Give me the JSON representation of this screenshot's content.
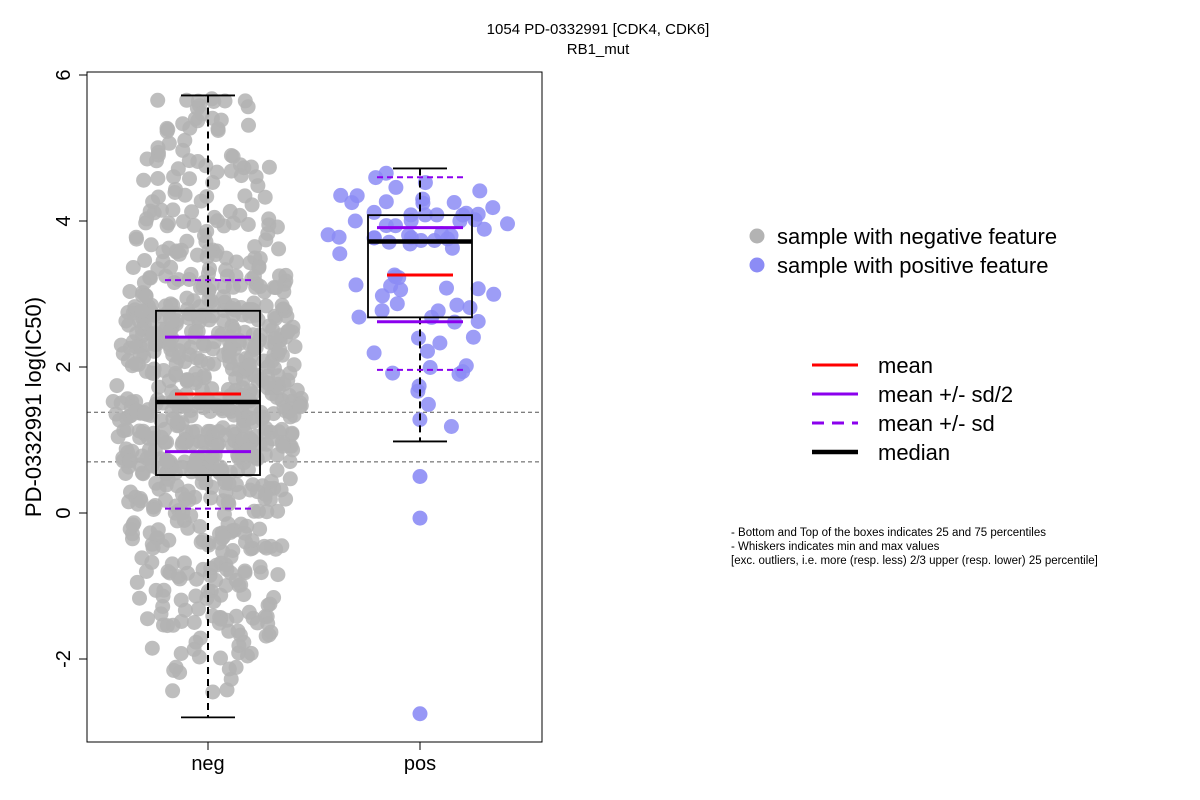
{
  "chart_data": {
    "type": "box",
    "title": "1054 PD-0332991 [CDK4, CDK6]",
    "subtitle": "RB1_mut",
    "ylabel": "PD-0332991 log(IC50)",
    "xlabel": "",
    "ylim": [
      -3.1,
      6.1
    ],
    "yticks": [
      -2,
      0,
      2,
      4,
      6
    ],
    "categories": [
      "neg",
      "pos"
    ],
    "reference_lines": [
      0.7,
      1.38
    ],
    "grid": false,
    "groups": [
      {
        "name": "neg",
        "n_points": 800,
        "whisker_low": -2.8,
        "q1": 0.52,
        "median": 1.52,
        "q3": 2.77,
        "whisker_high": 5.72,
        "mean": 1.63,
        "mean_minus_sd_half": 0.84,
        "mean_plus_sd_half": 2.41,
        "mean_minus_sd": 0.06,
        "mean_plus_sd": 3.19,
        "color": "#b3b3b3"
      },
      {
        "name": "pos",
        "n_points": 80,
        "whisker_low": 0.98,
        "q1": 2.68,
        "median": 3.72,
        "q3": 4.08,
        "whisker_high": 4.72,
        "mean": 3.26,
        "mean_minus_sd_half": 2.62,
        "mean_plus_sd_half": 3.91,
        "mean_minus_sd": 1.96,
        "mean_plus_sd": 4.6,
        "outliers": [
          0.5,
          -0.07,
          -2.75
        ],
        "color": "#8c8cf5"
      }
    ],
    "legend_points": [
      {
        "label": "sample with negative feature",
        "color": "#b3b3b3"
      },
      {
        "label": "sample with positive feature",
        "color": "#8c8cf5"
      }
    ],
    "legend_lines": [
      {
        "label": "mean",
        "color": "#ff0000",
        "style": "solid"
      },
      {
        "label": "mean +/- sd/2",
        "color": "#8b00ee",
        "style": "solid"
      },
      {
        "label": "mean +/- sd",
        "color": "#8b00ee",
        "style": "dashed"
      },
      {
        "label": "median",
        "color": "#000000",
        "style": "solid-thick"
      }
    ],
    "notes": [
      "- Bottom and Top of the boxes indicates 25 and 75 percentiles",
      "- Whiskers indicates min and max values",
      "[exc. outliers, i.e. more (resp. less) 2/3 upper (resp. lower) 25 percentile]"
    ]
  }
}
